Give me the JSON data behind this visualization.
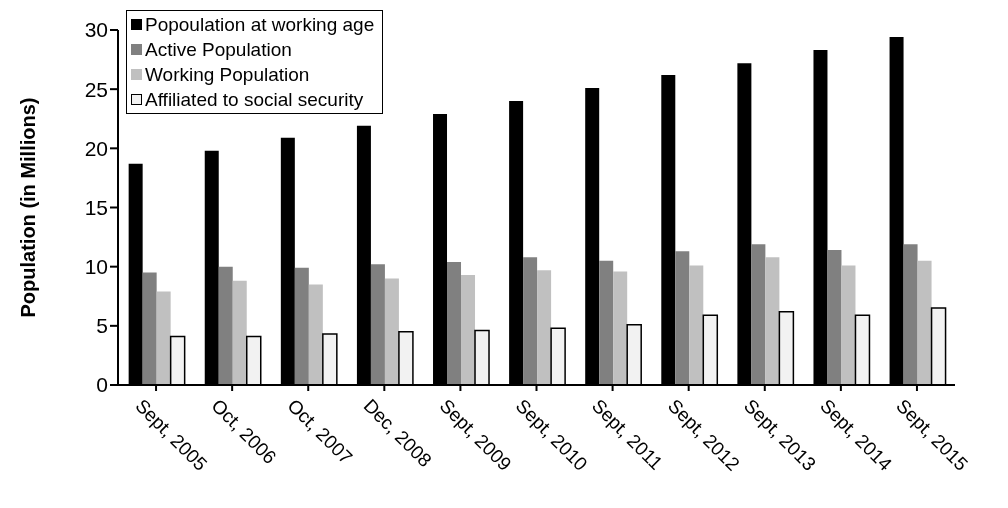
{
  "chart_data": {
    "type": "bar",
    "ylabel": "Population (in Millions)",
    "categories": [
      "Sept, 2005",
      "Oct, 2006",
      "Oct, 2007",
      "Dec, 2008",
      "Sept, 2009",
      "Sept, 2010",
      "Sept, 2011",
      "Sept, 2012",
      "Sept, 2013",
      "Sept, 2014",
      "Sept, 2015"
    ],
    "series": [
      {
        "name": "Popoulation at working age",
        "color": "#000000",
        "values": [
          18.7,
          19.8,
          20.9,
          21.9,
          22.9,
          24.0,
          25.1,
          26.2,
          27.2,
          28.3,
          29.4
        ]
      },
      {
        "name": "Active Population",
        "color": "#808080",
        "values": [
          9.5,
          10.0,
          9.9,
          10.2,
          10.4,
          10.8,
          10.5,
          11.3,
          11.9,
          11.4,
          11.9
        ]
      },
      {
        "name": "Working Population",
        "color": "#c0c0c0",
        "values": [
          7.9,
          8.8,
          8.5,
          9.0,
          9.3,
          9.7,
          9.6,
          10.1,
          10.8,
          10.1,
          10.5
        ]
      },
      {
        "name": "Affiliated to social security",
        "color": "#f2f2f2",
        "values": [
          4.1,
          4.1,
          4.3,
          4.5,
          4.6,
          4.8,
          5.1,
          5.9,
          6.2,
          5.9,
          6.5
        ]
      }
    ],
    "ylim": [
      0,
      30
    ],
    "yticks": [
      0,
      5,
      10,
      15,
      20,
      25,
      30
    ],
    "grid": false,
    "legend": "top left"
  }
}
